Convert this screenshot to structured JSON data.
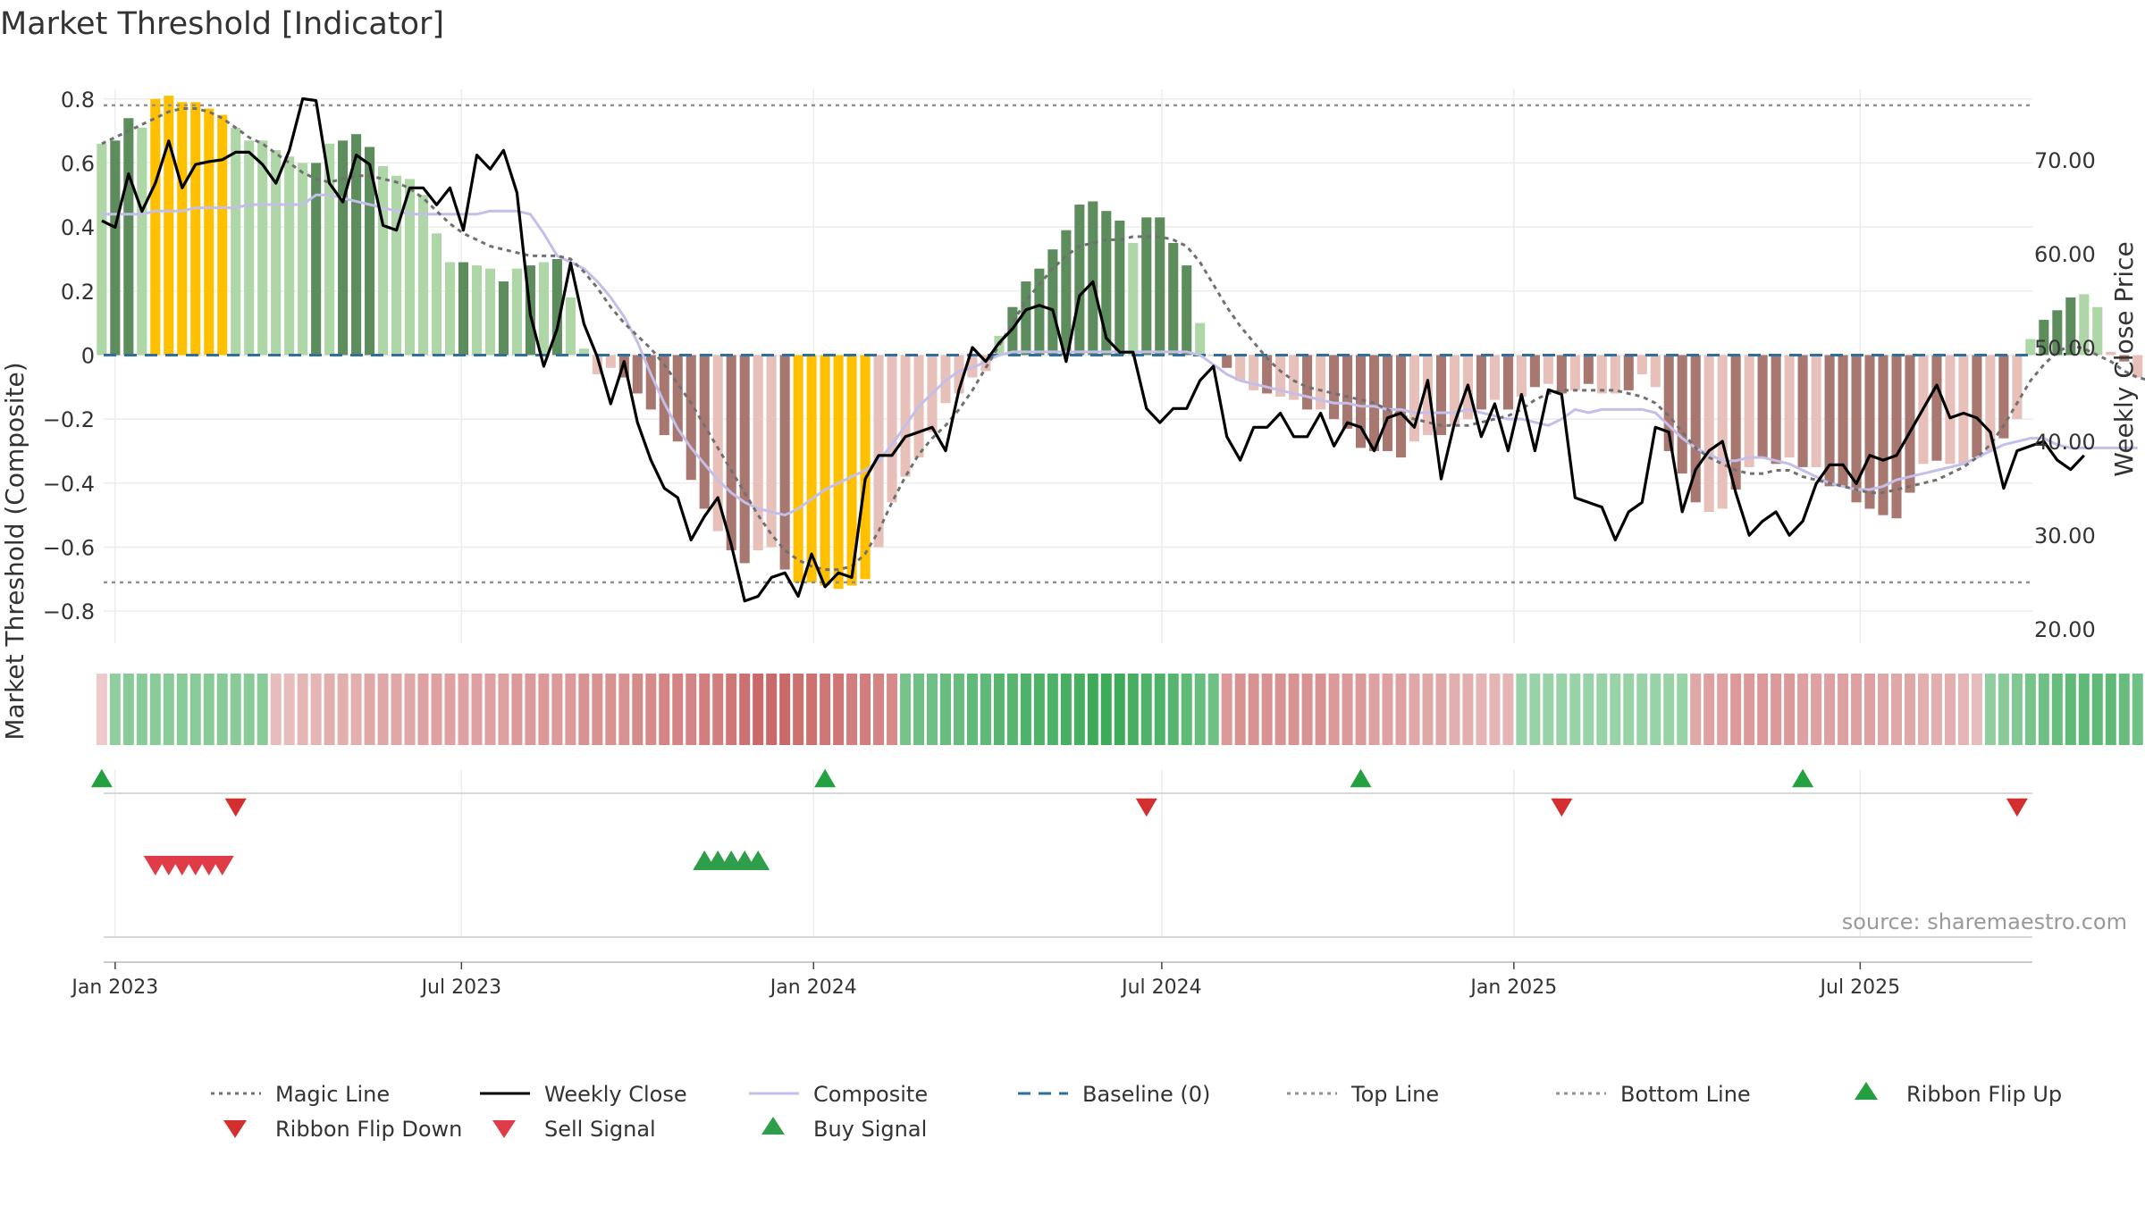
{
  "chart_data": {
    "type": "bar",
    "title": "Market Threshold [Indicator]",
    "ylabel": "Market Threshold (Composite)",
    "y2label": "Weekly Close Price",
    "ylim": [
      -0.9,
      0.83
    ],
    "y2lim": [
      18.5,
      77.5
    ],
    "xlim": [
      "2022-12-26",
      "2025-09-29"
    ],
    "yticks": [
      0.8,
      0.6,
      0.4,
      0.2,
      0,
      -0.2,
      -0.4,
      -0.6,
      -0.8
    ],
    "ytick_labels": [
      "0.8",
      "0.6",
      "0.4",
      "0.2",
      "0",
      "−0.2",
      "−0.4",
      "−0.6",
      "−0.8"
    ],
    "y2ticks": [
      70,
      60,
      50,
      40,
      30,
      20
    ],
    "y2tick_labels": [
      "70.00",
      "60.00",
      "50.00",
      "40.00",
      "30.00",
      "20.00"
    ],
    "xticks": [
      "2023-01-01",
      "2023-07-01",
      "2024-01-01",
      "2024-07-01",
      "2025-01-01",
      "2025-07-01"
    ],
    "xtick_labels": [
      "Jan 2023",
      "Jul 2023",
      "Jan 2024",
      "Jul 2024",
      "Jan 2025",
      "Jul 2025"
    ],
    "top_line": 0.78,
    "bottom_line": -0.71,
    "baseline": 0,
    "source_text": "source: sharemaestro.com",
    "colors": {
      "strong_pos": "#5d8c5d",
      "weak_pos": "#aed6a7",
      "strong_neg": "#a87870",
      "weak_neg": "#e8c0ba",
      "extreme": "#ffc000",
      "close": "#000000",
      "composite": "#c3bfe8",
      "magic": "#707070",
      "baseline": "#2f6f9e",
      "ribbon_up": "#23a040",
      "ribbon_down": "#d32f2f",
      "sell": "#e03c47",
      "buy": "#2e9e4a"
    },
    "bar_heights": [
      0.66,
      0.67,
      0.74,
      0.71,
      0.8,
      0.81,
      0.79,
      0.79,
      0.77,
      0.75,
      0.71,
      0.67,
      0.67,
      0.64,
      0.62,
      0.6,
      0.6,
      0.66,
      0.67,
      0.69,
      0.65,
      0.59,
      0.56,
      0.55,
      0.5,
      0.38,
      0.29,
      0.29,
      0.28,
      0.27,
      0.23,
      0.27,
      0.28,
      0.29,
      0.3,
      0.18,
      0.02,
      -0.06,
      -0.04,
      -0.07,
      -0.12,
      -0.17,
      -0.25,
      -0.27,
      -0.39,
      -0.48,
      -0.55,
      -0.61,
      -0.65,
      -0.61,
      -0.6,
      -0.67,
      -0.71,
      -0.71,
      -0.72,
      -0.73,
      -0.72,
      -0.7,
      -0.6,
      -0.46,
      -0.38,
      -0.32,
      -0.24,
      -0.15,
      -0.12,
      -0.07,
      -0.05,
      0.06,
      0.15,
      0.23,
      0.27,
      0.33,
      0.39,
      0.47,
      0.48,
      0.45,
      0.42,
      0.35,
      0.43,
      0.43,
      0.35,
      0.28,
      0.1,
      0.0,
      -0.04,
      -0.08,
      -0.11,
      -0.12,
      -0.13,
      -0.14,
      -0.17,
      -0.17,
      -0.2,
      -0.23,
      -0.29,
      -0.3,
      -0.3,
      -0.32,
      -0.27,
      -0.25,
      -0.25,
      -0.22,
      -0.2,
      -0.17,
      -0.14,
      -0.17,
      -0.13,
      -0.1,
      -0.09,
      -0.12,
      -0.11,
      -0.09,
      -0.12,
      -0.12,
      -0.11,
      -0.06,
      -0.1,
      -0.3,
      -0.37,
      -0.46,
      -0.49,
      -0.48,
      -0.42,
      -0.35,
      -0.32,
      -0.34,
      -0.32,
      -0.35,
      -0.35,
      -0.41,
      -0.41,
      -0.46,
      -0.48,
      -0.5,
      -0.51,
      -0.43,
      -0.34,
      -0.33,
      -0.34,
      -0.34,
      -0.32,
      -0.3,
      -0.26,
      -0.2,
      0.05,
      0.11,
      0.14,
      0.18,
      0.19,
      0.15,
      0.01,
      -0.02,
      -0.07,
      -0.03,
      -0.03,
      -0.04,
      -0.1,
      -0.16,
      -0.2
    ],
    "bar_classes": [
      "wp",
      "sp",
      "sp",
      "wp",
      "x",
      "x",
      "x",
      "x",
      "x",
      "x",
      "wp",
      "wp",
      "wp",
      "wp",
      "wp",
      "wp",
      "sp",
      "wp",
      "sp",
      "sp",
      "sp",
      "wp",
      "wp",
      "wp",
      "wp",
      "wp",
      "wp",
      "sp",
      "wp",
      "wp",
      "sp",
      "wp",
      "sp",
      "wp",
      "sp",
      "wp",
      "wp",
      "wn",
      "wn",
      "sn",
      "sn",
      "sn",
      "sn",
      "sn",
      "sn",
      "sn",
      "wn",
      "sn",
      "sn",
      "wn",
      "wn",
      "sn",
      "x",
      "x",
      "x",
      "x",
      "x",
      "x",
      "wn",
      "wn",
      "wn",
      "wn",
      "wn",
      "wn",
      "wn",
      "wn",
      "wn",
      "wp",
      "sp",
      "sp",
      "sp",
      "sp",
      "sp",
      "sp",
      "sp",
      "sp",
      "sp",
      "wp",
      "sp",
      "sp",
      "sp",
      "sp",
      "wp",
      "wp",
      "sn",
      "wn",
      "wn",
      "sn",
      "wn",
      "wn",
      "sn",
      "wn",
      "sn",
      "sn",
      "sn",
      "sn",
      "sn",
      "sn",
      "wn",
      "wn",
      "sn",
      "wn",
      "wn",
      "sn",
      "wn",
      "sn",
      "wn",
      "sn",
      "wn",
      "sn",
      "wn",
      "sn",
      "wn",
      "wn",
      "sn",
      "wn",
      "wn",
      "sn",
      "sn",
      "sn",
      "wn",
      "wn",
      "sn",
      "wn",
      "sn",
      "sn",
      "wn",
      "sn",
      "wn",
      "sn",
      "sn",
      "sn",
      "sn",
      "sn",
      "sn",
      "sn",
      "wn",
      "sn",
      "wn",
      "wn",
      "sn",
      "wn",
      "sn",
      "wn",
      "wp",
      "sp",
      "sp",
      "sp",
      "wp",
      "wp",
      "wn",
      "sn",
      "wn",
      "wn",
      "wn",
      "wn",
      "sn",
      "sn",
      "sn"
    ],
    "series": [
      {
        "name": "Magic Line",
        "values": [
          0.66,
          0.68,
          0.7,
          0.72,
          0.74,
          0.76,
          0.77,
          0.77,
          0.76,
          0.74,
          0.71,
          0.68,
          0.66,
          0.63,
          0.6,
          0.57,
          0.55,
          0.54,
          0.55,
          0.56,
          0.56,
          0.55,
          0.54,
          0.52,
          0.49,
          0.45,
          0.41,
          0.38,
          0.36,
          0.34,
          0.33,
          0.32,
          0.31,
          0.31,
          0.31,
          0.3,
          0.26,
          0.21,
          0.15,
          0.1,
          0.06,
          0.02,
          -0.03,
          -0.09,
          -0.15,
          -0.22,
          -0.29,
          -0.36,
          -0.43,
          -0.5,
          -0.56,
          -0.61,
          -0.64,
          -0.66,
          -0.67,
          -0.67,
          -0.66,
          -0.62,
          -0.55,
          -0.46,
          -0.38,
          -0.31,
          -0.26,
          -0.22,
          -0.17,
          -0.11,
          -0.04,
          0.03,
          0.1,
          0.17,
          0.22,
          0.27,
          0.31,
          0.34,
          0.35,
          0.36,
          0.36,
          0.37,
          0.37,
          0.37,
          0.36,
          0.34,
          0.29,
          0.22,
          0.15,
          0.09,
          0.04,
          -0.01,
          -0.05,
          -0.08,
          -0.1,
          -0.11,
          -0.12,
          -0.13,
          -0.14,
          -0.15,
          -0.17,
          -0.19,
          -0.2,
          -0.21,
          -0.22,
          -0.22,
          -0.22,
          -0.21,
          -0.2,
          -0.19,
          -0.17,
          -0.14,
          -0.12,
          -0.11,
          -0.11,
          -0.11,
          -0.11,
          -0.11,
          -0.12,
          -0.13,
          -0.15,
          -0.19,
          -0.24,
          -0.29,
          -0.32,
          -0.34,
          -0.36,
          -0.37,
          -0.37,
          -0.36,
          -0.36,
          -0.38,
          -0.39,
          -0.4,
          -0.41,
          -0.42,
          -0.43,
          -0.43,
          -0.42,
          -0.41,
          -0.4,
          -0.39,
          -0.37,
          -0.35,
          -0.32,
          -0.28,
          -0.22,
          -0.15,
          -0.08,
          -0.03,
          0.01,
          0.03,
          0.02,
          0.0,
          -0.02,
          -0.05,
          -0.07,
          -0.08,
          -0.09,
          -0.09,
          -0.1
        ]
      },
      {
        "name": "Weekly Close",
        "values": [
          63.5,
          62.8,
          68.5,
          64.5,
          67.5,
          72.0,
          67.0,
          69.5,
          69.8,
          70.0,
          70.8,
          70.8,
          69.5,
          67.5,
          71.0,
          76.5,
          76.3,
          67.5,
          65.5,
          70.5,
          69.5,
          63.0,
          62.5,
          67.0,
          67.0,
          65.2,
          67.0,
          62.5,
          70.5,
          69.0,
          71.0,
          66.5,
          53.5,
          48.0,
          52.0,
          59.0,
          52.5,
          49.0,
          44.0,
          48.5,
          42.0,
          38.0,
          35.0,
          34.0,
          29.5,
          32.0,
          34.0,
          29.0,
          23.0,
          23.5,
          25.5,
          26.0,
          23.5,
          28.0,
          24.5,
          26.0,
          25.5,
          36.0,
          38.5,
          38.5,
          40.5,
          41.0,
          41.5,
          39.0,
          45.5,
          50.0,
          48.5,
          50.5,
          52.0,
          54.0,
          54.5,
          54.0,
          48.5,
          55.5,
          57.0,
          51.0,
          49.5,
          49.5,
          43.5,
          42.0,
          43.5,
          43.5,
          46.5,
          48.0,
          40.5,
          38.0,
          41.5,
          41.5,
          43.0,
          40.5,
          40.5,
          43.0,
          39.5,
          42.0,
          41.5,
          39.0,
          42.5,
          43.0,
          41.5,
          46.5,
          36.0,
          42.0,
          46.0,
          40.5,
          44.0,
          39.0,
          45.0,
          39.0,
          45.5,
          45.0,
          34.0,
          33.5,
          33.0,
          29.5,
          32.5,
          33.5,
          41.5,
          41.0,
          32.5,
          37.0,
          39.0,
          40.0,
          34.5,
          30.0,
          31.5,
          32.5,
          30.0,
          31.5,
          35.5,
          37.5,
          37.5,
          35.5,
          38.5,
          38.0,
          38.5,
          41.0,
          43.5,
          46.0,
          42.5,
          43.0,
          42.5,
          41.0,
          35.0,
          39.0,
          39.5,
          40.0,
          38.0,
          37.0,
          38.5
        ]
      },
      {
        "name": "Composite",
        "values": [
          0.44,
          0.44,
          0.44,
          0.44,
          0.45,
          0.45,
          0.45,
          0.46,
          0.46,
          0.46,
          0.46,
          0.47,
          0.47,
          0.47,
          0.47,
          0.47,
          0.5,
          0.5,
          0.49,
          0.48,
          0.47,
          0.46,
          0.45,
          0.44,
          0.44,
          0.44,
          0.44,
          0.44,
          0.44,
          0.45,
          0.45,
          0.45,
          0.44,
          0.38,
          0.31,
          0.29,
          0.27,
          0.23,
          0.18,
          0.12,
          0.04,
          -0.06,
          -0.15,
          -0.23,
          -0.29,
          -0.34,
          -0.39,
          -0.43,
          -0.46,
          -0.48,
          -0.49,
          -0.5,
          -0.48,
          -0.45,
          -0.42,
          -0.4,
          -0.38,
          -0.36,
          -0.33,
          -0.28,
          -0.22,
          -0.16,
          -0.12,
          -0.08,
          -0.05,
          -0.04,
          -0.02,
          0.0,
          0.01,
          0.01,
          0.01,
          0.01,
          0.01,
          0.01,
          0.01,
          0.01,
          0.01,
          0.01,
          0.01,
          0.01,
          0.01,
          0.01,
          0.0,
          -0.03,
          -0.06,
          -0.08,
          -0.09,
          -0.1,
          -0.11,
          -0.12,
          -0.13,
          -0.14,
          -0.15,
          -0.15,
          -0.16,
          -0.16,
          -0.17,
          -0.17,
          -0.18,
          -0.18,
          -0.18,
          -0.18,
          -0.17,
          -0.18,
          -0.19,
          -0.2,
          -0.2,
          -0.21,
          -0.22,
          -0.2,
          -0.17,
          -0.18,
          -0.17,
          -0.17,
          -0.17,
          -0.17,
          -0.18,
          -0.22,
          -0.26,
          -0.29,
          -0.31,
          -0.33,
          -0.33,
          -0.32,
          -0.32,
          -0.33,
          -0.34,
          -0.36,
          -0.38,
          -0.4,
          -0.41,
          -0.42,
          -0.42,
          -0.41,
          -0.39,
          -0.38,
          -0.37,
          -0.36,
          -0.35,
          -0.34,
          -0.32,
          -0.3,
          -0.28,
          -0.27,
          -0.26,
          -0.26,
          -0.28,
          -0.29,
          -0.29,
          -0.29,
          -0.29,
          -0.29,
          -0.29
        ]
      }
    ],
    "ribbon_levels": [
      -0.05,
      0.35,
      0.4,
      0.4,
      0.4,
      0.4,
      0.4,
      0.4,
      0.4,
      0.4,
      0.4,
      0.4,
      0.4,
      -0.15,
      -0.15,
      -0.2,
      -0.2,
      -0.25,
      -0.25,
      -0.25,
      -0.3,
      -0.3,
      -0.3,
      -0.3,
      -0.35,
      -0.35,
      -0.35,
      -0.35,
      -0.35,
      -0.35,
      -0.35,
      -0.4,
      -0.4,
      -0.4,
      -0.4,
      -0.4,
      -0.45,
      -0.45,
      -0.45,
      -0.45,
      -0.5,
      -0.5,
      -0.55,
      -0.55,
      -0.55,
      -0.6,
      -0.6,
      -0.65,
      -0.7,
      -0.75,
      -0.75,
      -0.75,
      -0.7,
      -0.7,
      -0.65,
      -0.65,
      -0.6,
      -0.6,
      -0.55,
      -0.5,
      0.5,
      0.55,
      0.55,
      0.6,
      0.6,
      0.65,
      0.65,
      0.7,
      0.7,
      0.75,
      0.75,
      0.75,
      0.8,
      0.8,
      0.85,
      0.85,
      0.85,
      0.8,
      0.75,
      0.75,
      0.7,
      0.65,
      0.6,
      0.55,
      -0.4,
      -0.45,
      -0.45,
      -0.45,
      -0.45,
      -0.45,
      -0.45,
      -0.45,
      -0.4,
      -0.4,
      -0.4,
      -0.35,
      -0.35,
      -0.35,
      -0.3,
      -0.3,
      -0.3,
      -0.25,
      -0.25,
      -0.2,
      -0.2,
      -0.2,
      0.3,
      0.3,
      0.3,
      0.3,
      0.3,
      0.3,
      0.3,
      0.3,
      0.3,
      0.3,
      0.3,
      0.3,
      0.3,
      -0.3,
      -0.35,
      -0.35,
      -0.4,
      -0.4,
      -0.4,
      -0.4,
      -0.4,
      -0.35,
      -0.35,
      -0.35,
      -0.35,
      -0.35,
      -0.35,
      -0.3,
      -0.3,
      -0.3,
      -0.25,
      -0.25,
      -0.25,
      -0.2,
      -0.15,
      0.35,
      0.4,
      0.45,
      0.5,
      0.55,
      0.6,
      0.65,
      0.65,
      0.65,
      0.65,
      0.6,
      0.55,
      0.5,
      0.45,
      0.4,
      -0.15
    ],
    "ribbon_flip_up": [
      "2022-12-25",
      "2024-01-07",
      "2024-10-13",
      "2025-06-01"
    ],
    "ribbon_flip_down": [
      "2023-03-05",
      "2024-06-23",
      "2025-01-26",
      "2025-09-21"
    ],
    "sell_signals": [
      "2023-01-22",
      "2023-01-29",
      "2023-02-05",
      "2023-02-12",
      "2023-02-19",
      "2023-02-26"
    ],
    "buy_signals": [
      "2023-11-05",
      "2023-11-12",
      "2023-11-19",
      "2023-11-26",
      "2023-12-03"
    ],
    "legend": [
      {
        "label": "Magic Line",
        "kind": "dotline",
        "color": "#707070"
      },
      {
        "label": "Weekly Close",
        "kind": "line",
        "color": "#000000"
      },
      {
        "label": "Composite",
        "kind": "line",
        "color": "#c3bfe8"
      },
      {
        "label": "Baseline (0)",
        "kind": "dashline",
        "color": "#2f6f9e"
      },
      {
        "label": "Top Line",
        "kind": "dotline",
        "color": "#909090"
      },
      {
        "label": "Bottom Line",
        "kind": "dotline",
        "color": "#909090"
      },
      {
        "label": "Ribbon Flip Up",
        "kind": "tri-up",
        "color": "#23a040"
      },
      {
        "label": "Ribbon Flip Down",
        "kind": "tri-down",
        "color": "#d32f2f"
      },
      {
        "label": "Sell Signal",
        "kind": "tri-down",
        "color": "#e03c47"
      },
      {
        "label": "Buy Signal",
        "kind": "tri-up",
        "color": "#2e9e4a"
      }
    ]
  }
}
